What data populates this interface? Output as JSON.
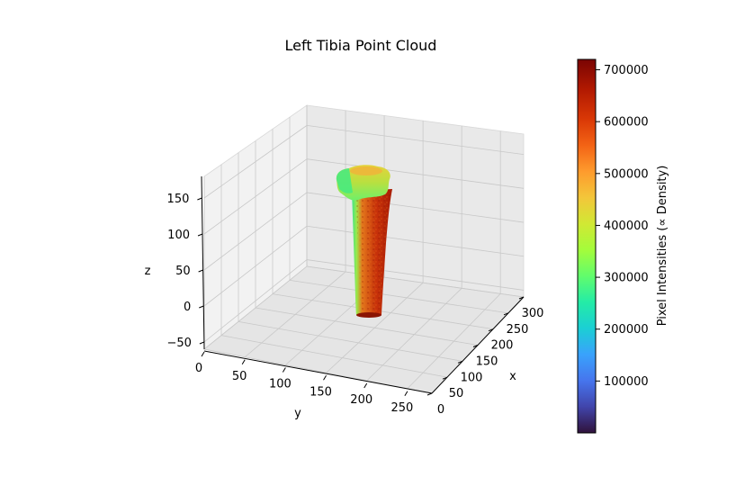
{
  "chart_data": {
    "type": "scatter",
    "title": "Left Tibia Point Cloud",
    "xlabel": "x",
    "ylabel": "y",
    "zlabel": "z",
    "x_ticks": [
      "0",
      "50",
      "100",
      "150",
      "200",
      "250",
      "300"
    ],
    "y_ticks": [
      "0",
      "50",
      "100",
      "150",
      "200",
      "250"
    ],
    "z_ticks": [
      "−50",
      "0",
      "50",
      "100",
      "150"
    ],
    "xlim": [
      0,
      300
    ],
    "ylim": [
      0,
      280
    ],
    "zlim": [
      -60,
      180
    ],
    "grid": true,
    "colormap": "turbo",
    "colorbar": {
      "label": "Pixel Intensities (∝ Density)",
      "ticks": [
        "100000",
        "200000",
        "300000",
        "400000",
        "500000",
        "600000",
        "700000"
      ],
      "range": [
        0,
        720000
      ]
    },
    "object": {
      "name": "left tibia",
      "z_range": [
        -50,
        120
      ],
      "shaft_intensity": 640000,
      "rim_intensity": 330000,
      "plateau_intensity": 480000
    }
  }
}
